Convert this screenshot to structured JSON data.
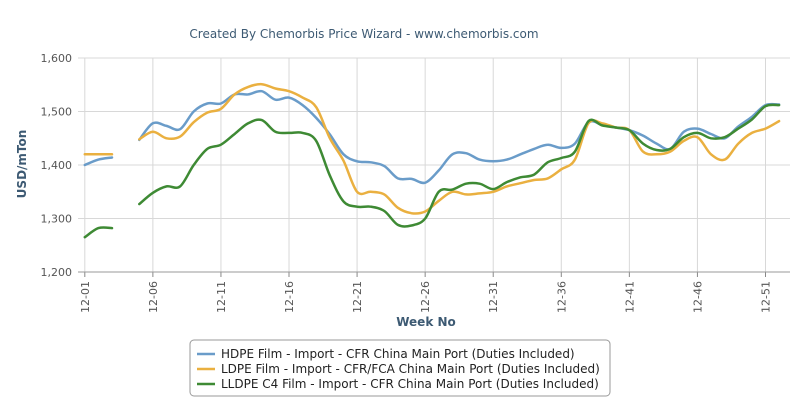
{
  "chart_data": {
    "type": "line",
    "title": "Created By Chemorbis Price Wizard - www.chemorbis.com",
    "xlabel": "Week No",
    "ylabel": "USD/mTon",
    "ylim": [
      1200,
      1600
    ],
    "y_ticks": [
      "1,200",
      "1,300",
      "1,400",
      "1,500",
      "1,600"
    ],
    "x_ticks": [
      "12-01",
      "12-06",
      "12-11",
      "12-16",
      "12-21",
      "12-26",
      "12-31",
      "12-36",
      "12-41",
      "12-46",
      "12-51"
    ],
    "x_tick_weeks": [
      1,
      6,
      11,
      16,
      21,
      26,
      31,
      36,
      41,
      46,
      51
    ],
    "grid": true,
    "legend_position": "bottom-center",
    "series": [
      {
        "name": "HDPE Film - Import - CFR China Main Port (Duties Included)",
        "color": "#6a9cc9",
        "points": [
          [
            1,
            1400
          ],
          [
            2,
            1410
          ],
          [
            3,
            1414
          ],
          null,
          [
            5,
            1447
          ],
          [
            6,
            1478
          ],
          [
            7,
            1473
          ],
          [
            8,
            1467
          ],
          [
            9,
            1500
          ],
          [
            10,
            1515
          ],
          [
            11,
            1515
          ],
          [
            12,
            1532
          ],
          [
            13,
            1532
          ],
          [
            14,
            1538
          ],
          [
            15,
            1522
          ],
          [
            16,
            1526
          ],
          [
            17,
            1512
          ],
          [
            18,
            1488
          ],
          [
            19,
            1457
          ],
          [
            20,
            1420
          ],
          [
            21,
            1407
          ],
          [
            22,
            1405
          ],
          [
            23,
            1398
          ],
          [
            24,
            1375
          ],
          [
            25,
            1374
          ],
          [
            26,
            1367
          ],
          [
            27,
            1390
          ],
          [
            28,
            1420
          ],
          [
            29,
            1422
          ],
          [
            30,
            1410
          ],
          [
            31,
            1407
          ],
          [
            32,
            1410
          ],
          [
            33,
            1420
          ],
          [
            34,
            1430
          ],
          [
            35,
            1438
          ],
          [
            36,
            1432
          ],
          [
            37,
            1440
          ],
          [
            38,
            1480
          ],
          [
            39,
            1475
          ],
          [
            40,
            1470
          ],
          [
            41,
            1465
          ],
          [
            42,
            1455
          ],
          [
            43,
            1440
          ],
          [
            44,
            1430
          ],
          [
            45,
            1462
          ],
          [
            46,
            1468
          ],
          [
            47,
            1458
          ],
          [
            48,
            1450
          ],
          [
            49,
            1472
          ],
          [
            50,
            1490
          ],
          [
            51,
            1512
          ],
          [
            52,
            1513
          ]
        ]
      },
      {
        "name": "LDPE Film - Import - CFR/FCA China Main Port (Duties Included)",
        "color": "#eab040",
        "points": [
          [
            1,
            1420
          ],
          [
            2,
            1420
          ],
          [
            3,
            1420
          ],
          null,
          [
            5,
            1448
          ],
          [
            6,
            1462
          ],
          [
            7,
            1450
          ],
          [
            8,
            1453
          ],
          [
            9,
            1480
          ],
          [
            10,
            1498
          ],
          [
            11,
            1505
          ],
          [
            12,
            1532
          ],
          [
            13,
            1546
          ],
          [
            14,
            1551
          ],
          [
            15,
            1543
          ],
          [
            16,
            1538
          ],
          [
            17,
            1526
          ],
          [
            18,
            1508
          ],
          [
            19,
            1450
          ],
          [
            20,
            1408
          ],
          [
            21,
            1350
          ],
          [
            22,
            1350
          ],
          [
            23,
            1345
          ],
          [
            24,
            1320
          ],
          [
            25,
            1310
          ],
          [
            26,
            1313
          ],
          [
            27,
            1333
          ],
          [
            28,
            1350
          ],
          [
            29,
            1345
          ],
          [
            30,
            1347
          ],
          [
            31,
            1350
          ],
          [
            32,
            1360
          ],
          [
            33,
            1366
          ],
          [
            34,
            1372
          ],
          [
            35,
            1375
          ],
          [
            36,
            1392
          ],
          [
            37,
            1410
          ],
          [
            38,
            1478
          ],
          [
            39,
            1478
          ],
          [
            40,
            1470
          ],
          [
            41,
            1465
          ],
          [
            42,
            1425
          ],
          [
            43,
            1420
          ],
          [
            44,
            1425
          ],
          [
            45,
            1445
          ],
          [
            46,
            1452
          ],
          [
            47,
            1420
          ],
          [
            48,
            1410
          ],
          [
            49,
            1440
          ],
          [
            50,
            1460
          ],
          [
            51,
            1468
          ],
          [
            52,
            1482
          ]
        ]
      },
      {
        "name": "LLDPE C4 Film - Import - CFR China Main Port (Duties Included)",
        "color": "#3e8a34",
        "points": [
          [
            1,
            1265
          ],
          [
            2,
            1282
          ],
          [
            3,
            1282
          ],
          null,
          [
            5,
            1327
          ],
          [
            6,
            1348
          ],
          [
            7,
            1360
          ],
          [
            8,
            1360
          ],
          [
            9,
            1400
          ],
          [
            10,
            1430
          ],
          [
            11,
            1438
          ],
          [
            12,
            1458
          ],
          [
            13,
            1478
          ],
          [
            14,
            1484
          ],
          [
            15,
            1462
          ],
          [
            16,
            1460
          ],
          [
            17,
            1460
          ],
          [
            18,
            1445
          ],
          [
            19,
            1380
          ],
          [
            20,
            1332
          ],
          [
            21,
            1322
          ],
          [
            22,
            1322
          ],
          [
            23,
            1314
          ],
          [
            24,
            1288
          ],
          [
            25,
            1287
          ],
          [
            26,
            1300
          ],
          [
            27,
            1350
          ],
          [
            28,
            1354
          ],
          [
            29,
            1365
          ],
          [
            30,
            1365
          ],
          [
            31,
            1355
          ],
          [
            32,
            1368
          ],
          [
            33,
            1377
          ],
          [
            34,
            1382
          ],
          [
            35,
            1405
          ],
          [
            36,
            1413
          ],
          [
            37,
            1425
          ],
          [
            38,
            1482
          ],
          [
            39,
            1474
          ],
          [
            40,
            1470
          ],
          [
            41,
            1465
          ],
          [
            42,
            1440
          ],
          [
            43,
            1428
          ],
          [
            44,
            1430
          ],
          [
            45,
            1452
          ],
          [
            46,
            1460
          ],
          [
            47,
            1450
          ],
          [
            48,
            1452
          ],
          [
            49,
            1468
          ],
          [
            50,
            1485
          ],
          [
            51,
            1510
          ],
          [
            52,
            1512
          ]
        ]
      }
    ]
  }
}
